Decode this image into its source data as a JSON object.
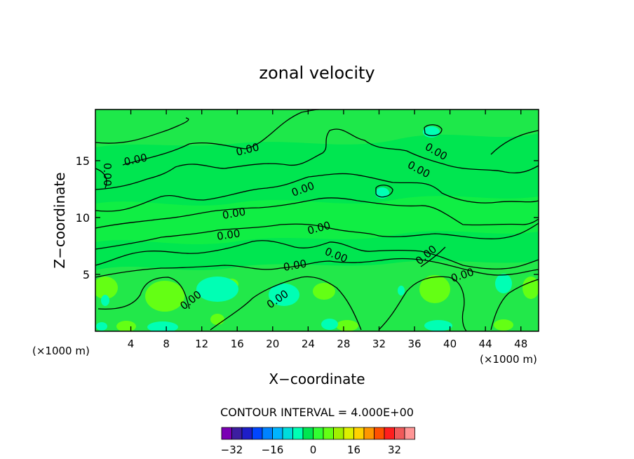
{
  "chart_data": {
    "type": "contour",
    "title": "zonal velocity",
    "xlabel": "X−coordinate",
    "ylabel": "Z−coordinate",
    "x_unit_left": "(×1000 m)",
    "x_unit_right": "(×1000 m)",
    "xlim": [
      0,
      50
    ],
    "ylim": [
      0,
      19.5
    ],
    "x_ticks": [
      "4",
      "8",
      "12",
      "16",
      "20",
      "24",
      "28",
      "32",
      "36",
      "40",
      "44",
      "48"
    ],
    "x_tick_values": [
      4,
      8,
      12,
      16,
      20,
      24,
      28,
      32,
      36,
      40,
      44,
      48
    ],
    "y_ticks": [
      "5",
      "10",
      "15"
    ],
    "y_tick_values": [
      5,
      10,
      15
    ],
    "contour_label": "0.00",
    "contour_interval_text": "CONTOUR INTERVAL = 4.000E+00",
    "colorbar": {
      "colors": [
        "#7a00b4",
        "#3c1ea0",
        "#1e1ec8",
        "#0046ff",
        "#0082ff",
        "#00b4ff",
        "#00dcdc",
        "#00ffb4",
        "#00e650",
        "#32ff32",
        "#64ff14",
        "#a0f000",
        "#dcf000",
        "#ffd200",
        "#ff9600",
        "#ff5000",
        "#ff1e1e",
        "#f05a5a",
        "#ff9696"
      ],
      "tick_labels": [
        "−32",
        "−16",
        "0",
        "16",
        "32"
      ],
      "tick_values": [
        -32,
        -16,
        0,
        16,
        32
      ]
    }
  }
}
